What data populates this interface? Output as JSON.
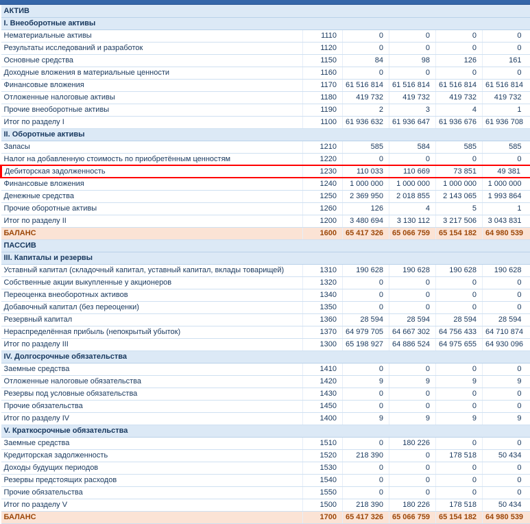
{
  "colors": {
    "header_bar": "#3566a9",
    "section_bg": "#dce9f6",
    "section_text": "#17375d",
    "row_text": "#17375d",
    "balance_bg": "#fbe3d5",
    "balance_text": "#9c4708",
    "highlight_border": "#ff0000",
    "grid_line": "#cfe0f1"
  },
  "rows": [
    {
      "type": "section",
      "label": "АКТИВ"
    },
    {
      "type": "section",
      "label": "I. Внеоборотные активы"
    },
    {
      "type": "data",
      "label": "Нематериальные активы",
      "code": "1110",
      "values": [
        "0",
        "0",
        "0",
        "0"
      ]
    },
    {
      "type": "data",
      "label": "Результаты исследований и разработок",
      "code": "1120",
      "values": [
        "0",
        "0",
        "0",
        "0"
      ]
    },
    {
      "type": "data",
      "label": "Основные средства",
      "code": "1150",
      "values": [
        "84",
        "98",
        "126",
        "161"
      ]
    },
    {
      "type": "data",
      "label": "Доходные вложения в материальные ценности",
      "code": "1160",
      "values": [
        "0",
        "0",
        "0",
        "0"
      ]
    },
    {
      "type": "data",
      "label": "Финансовые вложения",
      "code": "1170",
      "values": [
        "61 516 814",
        "61 516 814",
        "61 516 814",
        "61 516 814"
      ]
    },
    {
      "type": "data",
      "label": "Отложенные налоговые активы",
      "code": "1180",
      "values": [
        "419 732",
        "419 732",
        "419 732",
        "419 732"
      ]
    },
    {
      "type": "data",
      "label": "Прочие внеоборотные активы",
      "code": "1190",
      "values": [
        "2",
        "3",
        "4",
        "1"
      ]
    },
    {
      "type": "data",
      "label": "Итог по разделу I",
      "code": "1100",
      "values": [
        "61 936 632",
        "61 936 647",
        "61 936 676",
        "61 936 708"
      ]
    },
    {
      "type": "section",
      "label": "II. Оборотные активы"
    },
    {
      "type": "data",
      "label": "Запасы",
      "code": "1210",
      "values": [
        "585",
        "584",
        "585",
        "585"
      ]
    },
    {
      "type": "data",
      "label": "Налог на добавленную стоимость по приобретённым ценностям",
      "code": "1220",
      "values": [
        "0",
        "0",
        "0",
        "0"
      ]
    },
    {
      "type": "data",
      "highlight": true,
      "label": "Дебиторская задолженность",
      "code": "1230",
      "values": [
        "110 033",
        "110 669",
        "73 851",
        "49 381"
      ]
    },
    {
      "type": "data",
      "label": "Финансовые вложения",
      "code": "1240",
      "values": [
        "1 000 000",
        "1 000 000",
        "1 000 000",
        "1 000 000"
      ]
    },
    {
      "type": "data",
      "label": "Денежные средства",
      "code": "1250",
      "values": [
        "2 369 950",
        "2 018 855",
        "2 143 065",
        "1 993 864"
      ]
    },
    {
      "type": "data",
      "label": "Прочие оборотные активы",
      "code": "1260",
      "values": [
        "126",
        "4",
        "5",
        "1"
      ]
    },
    {
      "type": "data",
      "label": "Итог по разделу II",
      "code": "1200",
      "values": [
        "3 480 694",
        "3 130 112",
        "3 217 506",
        "3 043 831"
      ]
    },
    {
      "type": "balance",
      "label": "БАЛАНС",
      "code": "1600",
      "values": [
        "65 417 326",
        "65 066 759",
        "65 154 182",
        "64 980 539"
      ]
    },
    {
      "type": "section",
      "label": "ПАССИВ"
    },
    {
      "type": "section",
      "label": "III. Капиталы и резервы"
    },
    {
      "type": "data",
      "label": "Уставный капитал (складочный капитал, уставный капитал, вклады товарищей)",
      "code": "1310",
      "values": [
        "190 628",
        "190 628",
        "190 628",
        "190 628"
      ]
    },
    {
      "type": "data",
      "label": "Собственные акции выкупленные у акционеров",
      "code": "1320",
      "values": [
        "0",
        "0",
        "0",
        "0"
      ]
    },
    {
      "type": "data",
      "label": "Переоценка внеоборотных активов",
      "code": "1340",
      "values": [
        "0",
        "0",
        "0",
        "0"
      ]
    },
    {
      "type": "data",
      "label": "Добавочный капитал (без переоценки)",
      "code": "1350",
      "values": [
        "0",
        "0",
        "0",
        "0"
      ]
    },
    {
      "type": "data",
      "label": "Резервный капитал",
      "code": "1360",
      "values": [
        "28 594",
        "28 594",
        "28 594",
        "28 594"
      ]
    },
    {
      "type": "data",
      "label": "Нераспределённая прибыль (непокрытый убыток)",
      "code": "1370",
      "values": [
        "64 979 705",
        "64 667 302",
        "64 756 433",
        "64 710 874"
      ]
    },
    {
      "type": "data",
      "label": "Итог по разделу III",
      "code": "1300",
      "values": [
        "65 198 927",
        "64 886 524",
        "64 975 655",
        "64 930 096"
      ]
    },
    {
      "type": "section",
      "label": "IV. Долгосрочные обязательства"
    },
    {
      "type": "data",
      "label": "Заемные средства",
      "code": "1410",
      "values": [
        "0",
        "0",
        "0",
        "0"
      ]
    },
    {
      "type": "data",
      "label": "Отложенные налоговые обязательства",
      "code": "1420",
      "values": [
        "9",
        "9",
        "9",
        "9"
      ]
    },
    {
      "type": "data",
      "label": "Резервы под условные обязательства",
      "code": "1430",
      "values": [
        "0",
        "0",
        "0",
        "0"
      ]
    },
    {
      "type": "data",
      "label": "Прочие обязательства",
      "code": "1450",
      "values": [
        "0",
        "0",
        "0",
        "0"
      ]
    },
    {
      "type": "data",
      "label": "Итог по разделу IV",
      "code": "1400",
      "values": [
        "9",
        "9",
        "9",
        "9"
      ]
    },
    {
      "type": "section",
      "label": "V. Краткосрочные обязательства"
    },
    {
      "type": "data",
      "label": "Заемные средства",
      "code": "1510",
      "values": [
        "0",
        "180 226",
        "0",
        "0"
      ]
    },
    {
      "type": "data",
      "label": "Кредиторская задолженность",
      "code": "1520",
      "values": [
        "218 390",
        "0",
        "178 518",
        "50 434"
      ]
    },
    {
      "type": "data",
      "label": "Доходы будущих периодов",
      "code": "1530",
      "values": [
        "0",
        "0",
        "0",
        "0"
      ]
    },
    {
      "type": "data",
      "label": "Резервы предстоящих расходов",
      "code": "1540",
      "values": [
        "0",
        "0",
        "0",
        "0"
      ]
    },
    {
      "type": "data",
      "label": "Прочие обязательства",
      "code": "1550",
      "values": [
        "0",
        "0",
        "0",
        "0"
      ]
    },
    {
      "type": "data",
      "label": "Итог по разделу V",
      "code": "1500",
      "values": [
        "218 390",
        "180 226",
        "178 518",
        "50 434"
      ]
    },
    {
      "type": "balance",
      "label": "БАЛАНС",
      "code": "1700",
      "values": [
        "65 417 326",
        "65 066 759",
        "65 154 182",
        "64 980 539"
      ]
    }
  ]
}
